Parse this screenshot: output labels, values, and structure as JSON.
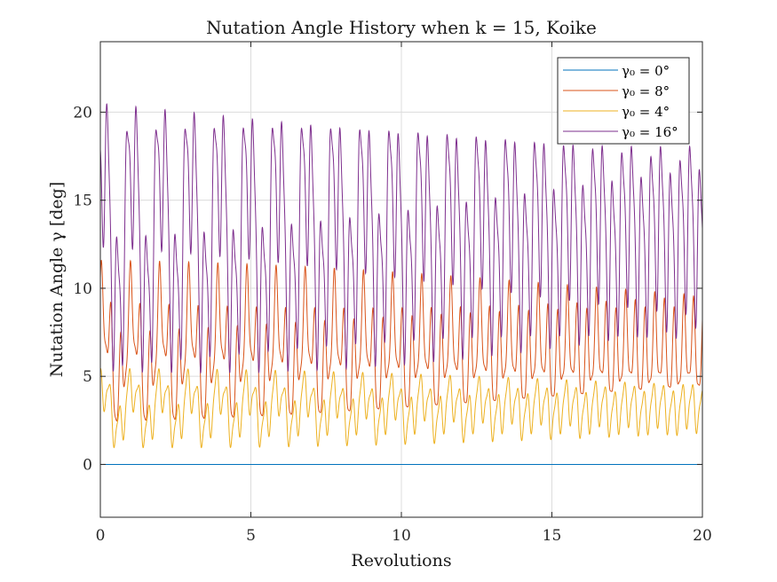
{
  "chart_data": {
    "type": "line",
    "title": "Nutation Angle History when k = 15, Koike",
    "xlabel": "Revolutions",
    "ylabel": "Nutation Angle γ [deg]",
    "xlim": [
      0,
      20
    ],
    "ylim": [
      -3,
      24
    ],
    "xticks": [
      0,
      5,
      10,
      15,
      20
    ],
    "yticks": [
      0,
      5,
      10,
      15,
      20
    ],
    "grid": true,
    "legend_position": "top-right",
    "series": [
      {
        "name": "γ0 = 0°",
        "legend_label": "γ₀ = 0°",
        "color": "#0072BD",
        "min": 0,
        "max": 0,
        "fast_cycles_per_rev": 3.1,
        "envelope_cycles_per_rev": 1.0
      },
      {
        "name": "γ0 = 8°",
        "legend_label": "γ₀ = 8°",
        "color": "#D95319",
        "min": 1.0,
        "max": 11.9,
        "fast_cycles_per_rev": 3.1,
        "envelope_cycles_per_rev": 1.0
      },
      {
        "name": "γ0 = 4°",
        "legend_label": "γ₀ = 4°",
        "color": "#EDB120",
        "min": 0.4,
        "max": 6.0,
        "fast_cycles_per_rev": 3.1,
        "envelope_cycles_per_rev": 1.0
      },
      {
        "name": "γ0 = 16°",
        "legend_label": "γ₀ = 16°",
        "color": "#7E2F8E",
        "min": 2.8,
        "max": 23.4,
        "fast_cycles_per_rev": 3.1,
        "envelope_cycles_per_rev": 1.0
      }
    ]
  }
}
